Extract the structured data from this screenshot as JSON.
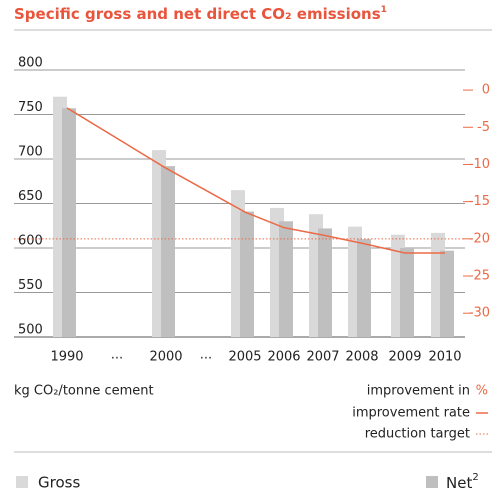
{
  "chart_data": {
    "type": "bar",
    "title": "Specific gross and net direct CO₂ emissions",
    "title_note": "1",
    "categories": [
      "1990",
      "2000",
      "2005",
      "2006",
      "2007",
      "2008",
      "2009",
      "2010"
    ],
    "gap_label": "...",
    "series": [
      {
        "name": "Gross",
        "color": "#d9d9d9",
        "values": [
          770,
          710,
          665,
          645,
          638,
          624,
          615,
          617
        ]
      },
      {
        "name": "Net",
        "name_note": "2",
        "color": "#bfbfbf",
        "values": [
          757,
          692,
          641,
          630,
          622,
          610,
          600,
          597
        ]
      },
      {
        "name": "improvement rate",
        "type": "line",
        "axis": "y2",
        "color": "#ec6a46",
        "values": [
          -2.4,
          -10.5,
          -16.4,
          -18.5,
          -19.5,
          -20.6,
          -21.9,
          -21.9
        ]
      }
    ],
    "reduction_target": -20,
    "reduction_target_name": "reduction target",
    "ylim": [
      500,
      800
    ],
    "yticks": [
      500,
      550,
      600,
      650,
      700,
      750,
      800
    ],
    "y2lim": [
      -33.2,
      2.7
    ],
    "y2ticks": [
      0,
      -5,
      -10,
      -15,
      -20,
      -25,
      -30
    ],
    "ylabel": "kg CO₂/tonne cement",
    "y2label": "improvement in",
    "y2unit": "%",
    "grid": true
  }
}
